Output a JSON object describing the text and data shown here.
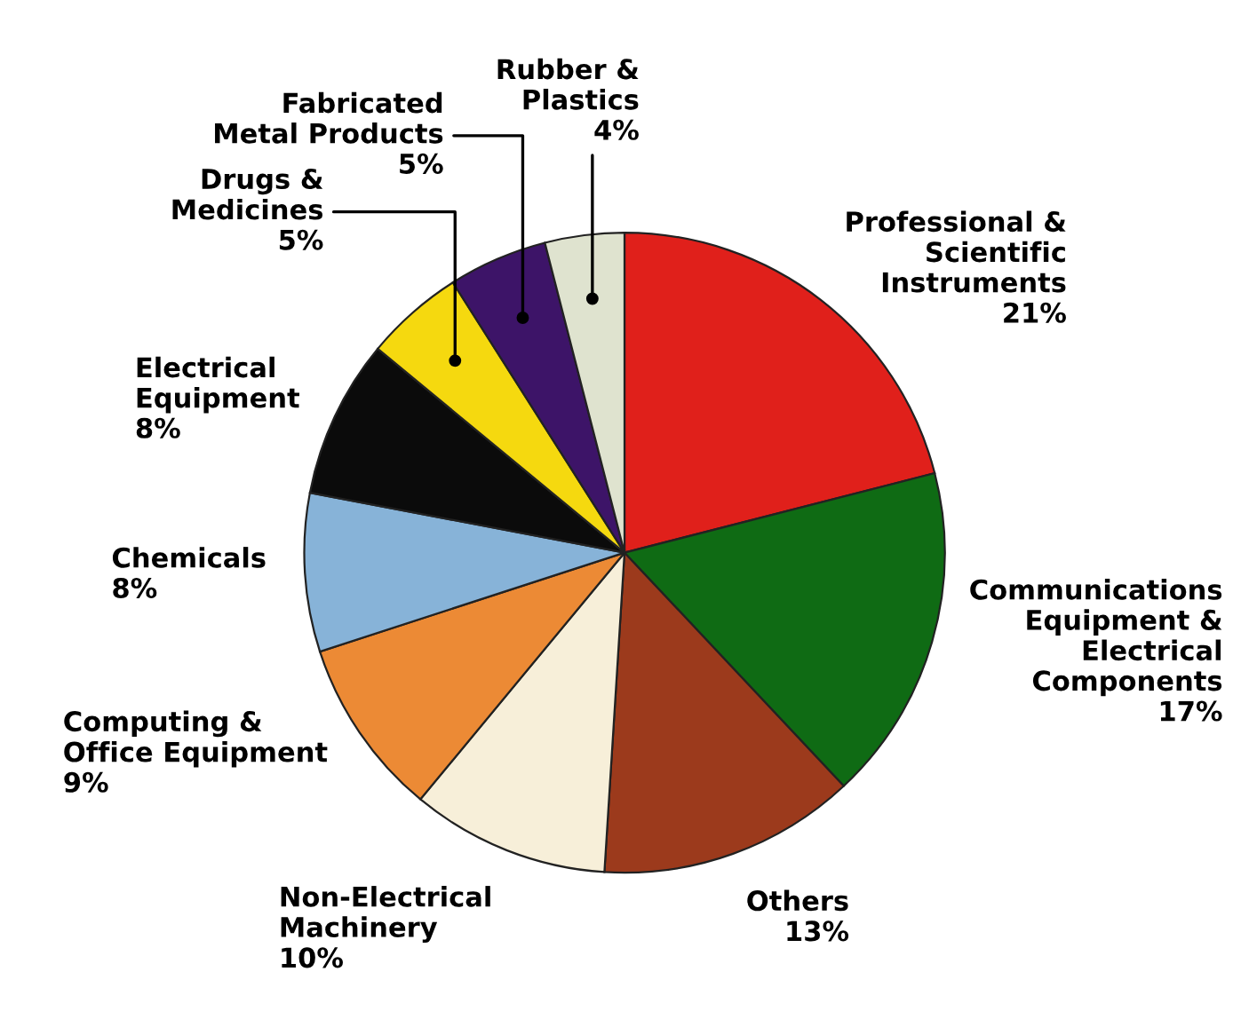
{
  "chart_data": {
    "type": "pie",
    "categories": [
      "Professional &\nScientific\nInstruments",
      "Communications\nEquipment &\nElectrical\nComponents",
      "Others",
      "Non-Electrical\nMachinery",
      "Computing &\nOffice Equipment",
      "Chemicals",
      "Electrical\nEquipment",
      "Drugs &\nMedicines",
      "Fabricated\nMetal Products",
      "Rubber &\nPlastics"
    ],
    "values": [
      21,
      17,
      13,
      10,
      9,
      8,
      8,
      5,
      5,
      4
    ],
    "value_labels": [
      "21%",
      "17%",
      "13%",
      "10%",
      "9%",
      "8%",
      "8%",
      "5%",
      "5%",
      "4%"
    ],
    "colors": [
      "#e0201b",
      "#0f6b14",
      "#9c3a1c",
      "#f7efd9",
      "#ec8a35",
      "#87b3d8",
      "#0b0b0b",
      "#f5d90f",
      "#3d1468",
      "#dfe3cf"
    ]
  }
}
